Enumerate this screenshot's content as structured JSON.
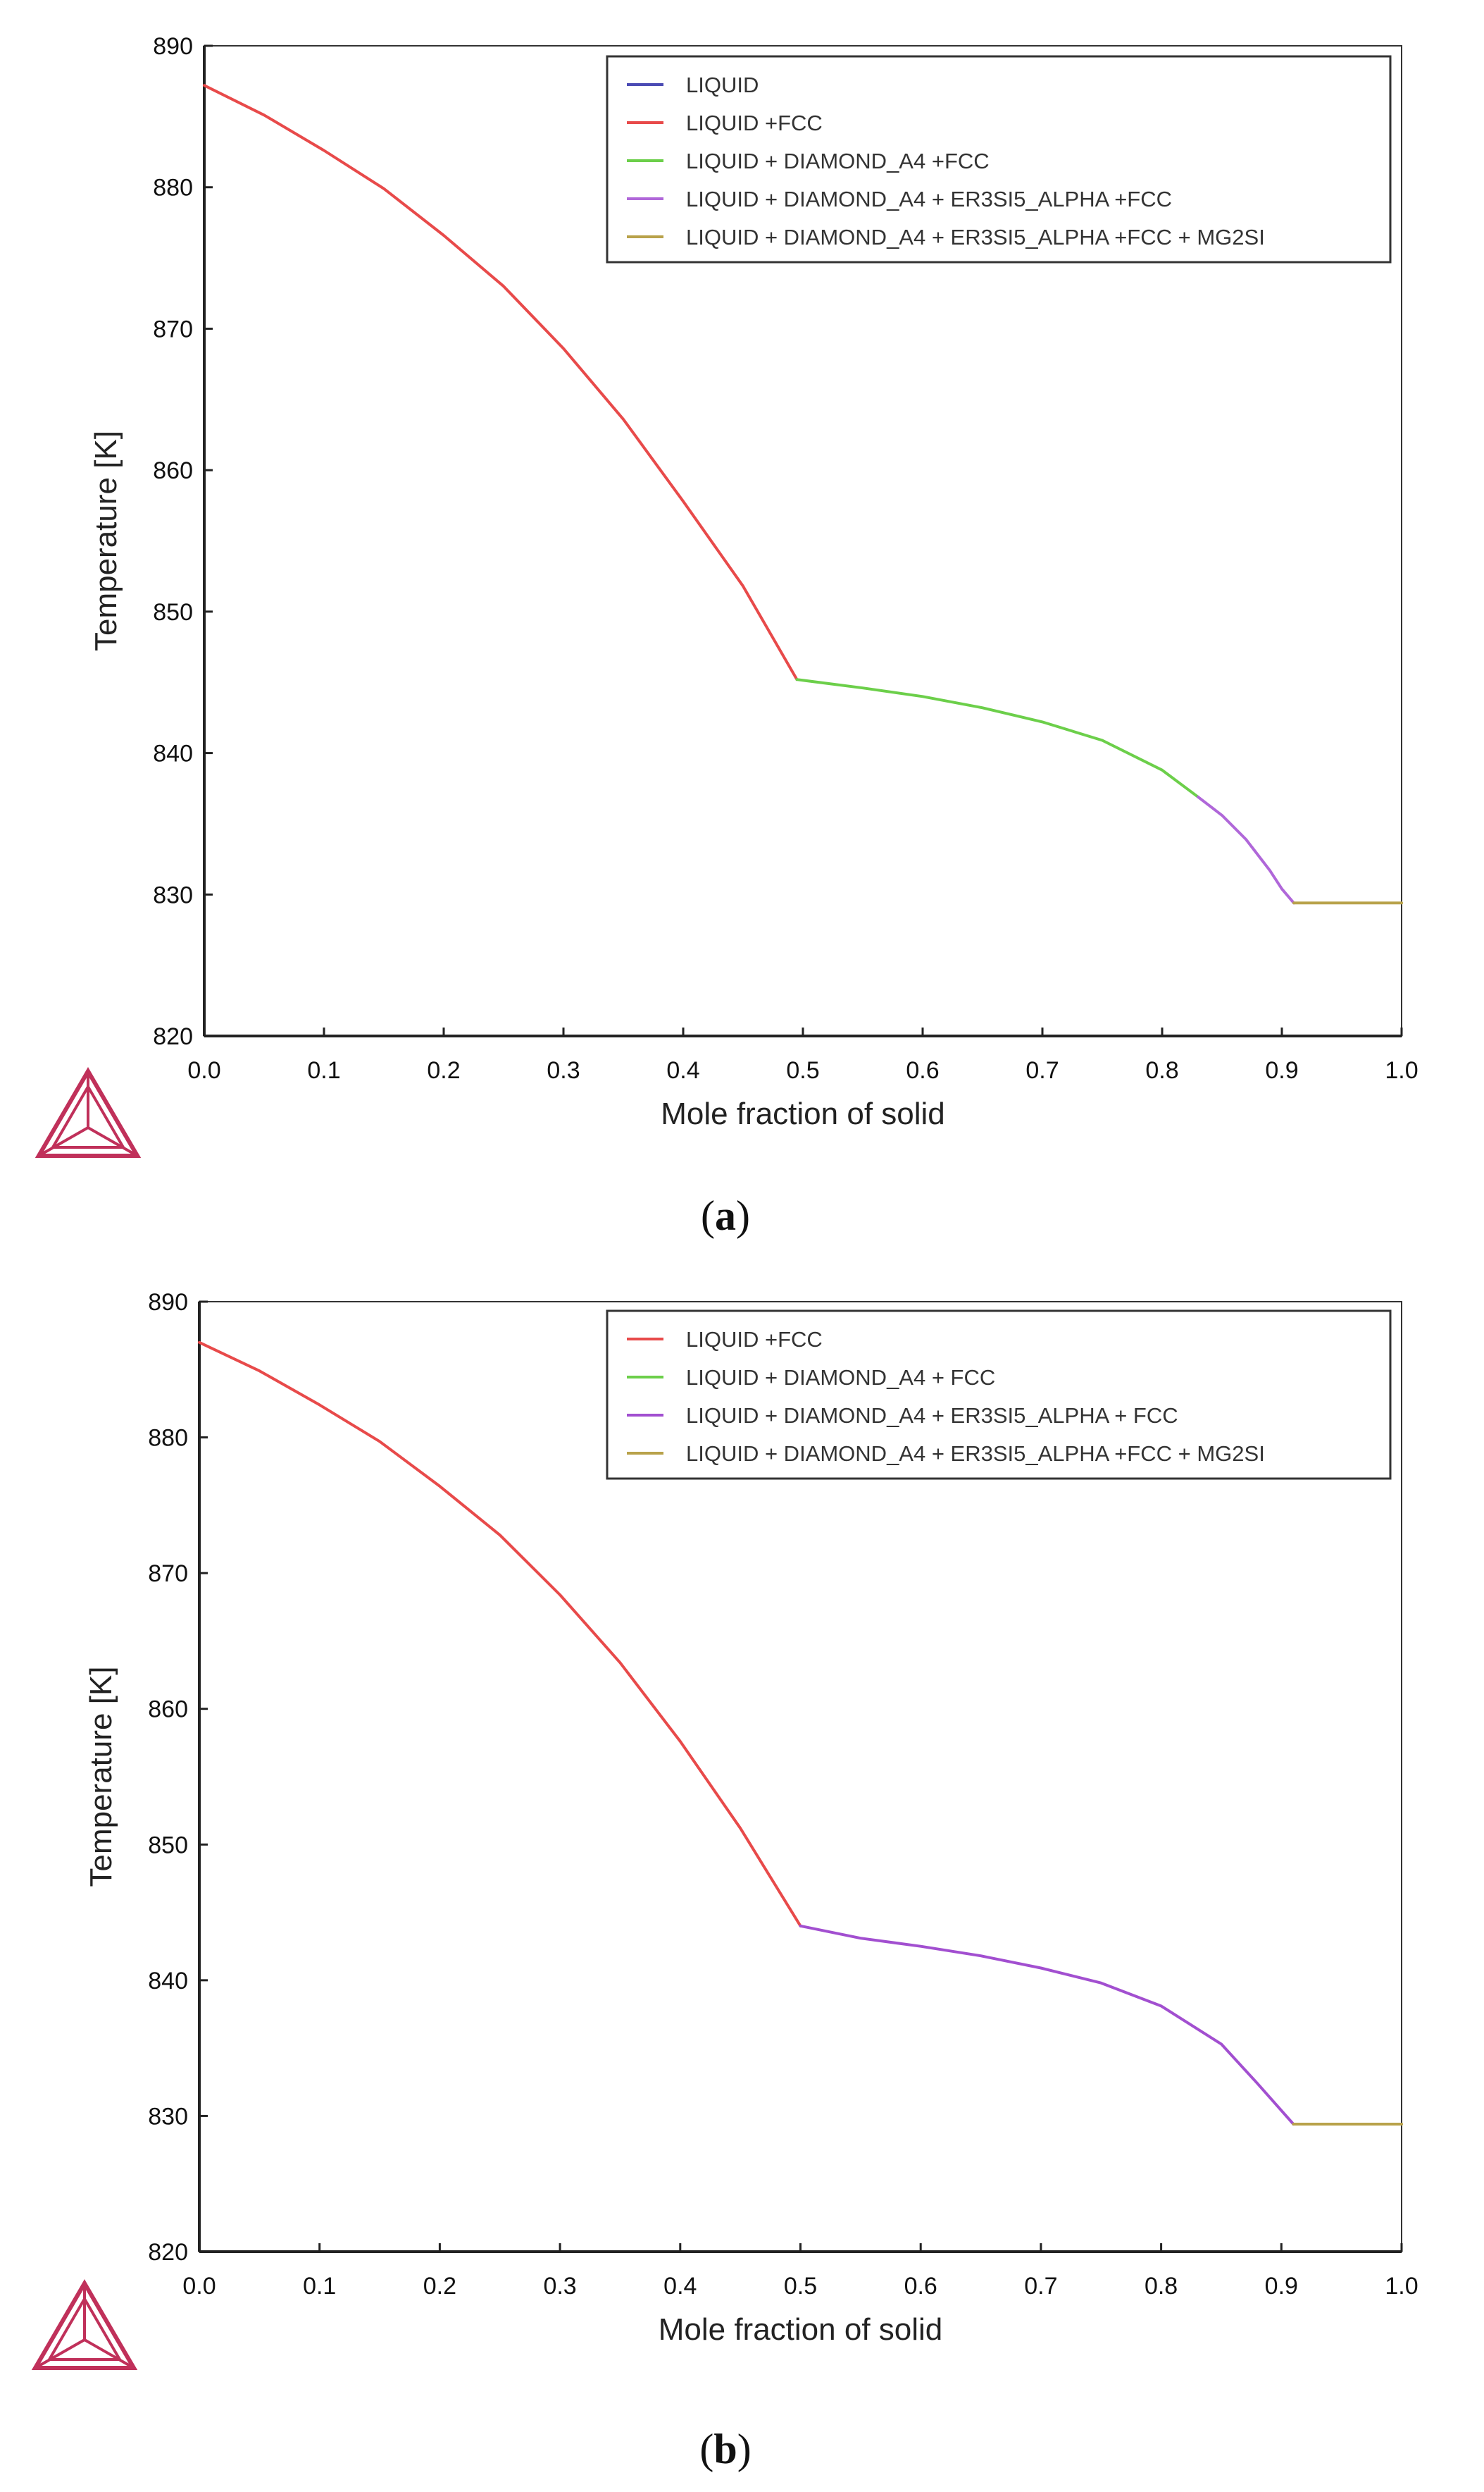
{
  "chart_data": [
    {
      "type": "line",
      "panel_label": "a",
      "title": "",
      "xlabel": "Mole fraction of solid",
      "ylabel": "Temperature [K]",
      "xlim": [
        0.0,
        1.0
      ],
      "ylim": [
        820,
        890
      ],
      "xticks": [
        "0.0",
        "0.1",
        "0.2",
        "0.3",
        "0.4",
        "0.5",
        "0.6",
        "0.7",
        "0.8",
        "0.9",
        "1.0"
      ],
      "yticks": [
        "820",
        "830",
        "840",
        "850",
        "860",
        "870",
        "880",
        "890"
      ],
      "grid": false,
      "legend_position": "top-right",
      "series": [
        {
          "name": "LIQUID",
          "color": "#4b4bb4",
          "x": [
            0.0
          ],
          "y": [
            887.2
          ]
        },
        {
          "name": "LIQUID +FCC",
          "color": "#e84a4a",
          "x": [
            0.0,
            0.05,
            0.1,
            0.15,
            0.2,
            0.25,
            0.3,
            0.35,
            0.4,
            0.45,
            0.495
          ],
          "y": [
            887.2,
            885.1,
            882.6,
            879.9,
            876.6,
            873.0,
            868.6,
            863.6,
            857.8,
            851.8,
            845.2
          ]
        },
        {
          "name": "LIQUID + DIAMOND_A4 +FCC",
          "color": "#6ccf4a",
          "x": [
            0.495,
            0.55,
            0.6,
            0.65,
            0.7,
            0.75,
            0.8,
            0.83
          ],
          "y": [
            845.2,
            844.6,
            844.0,
            843.2,
            842.2,
            840.9,
            838.8,
            836.9
          ]
        },
        {
          "name": "LIQUID + DIAMOND_A4 + ER3SI5_ALPHA +FCC",
          "color": "#b067d9",
          "x": [
            0.83,
            0.85,
            0.87,
            0.89,
            0.9,
            0.91
          ],
          "y": [
            836.9,
            835.6,
            833.9,
            831.7,
            830.4,
            829.4
          ]
        },
        {
          "name": "LIQUID + DIAMOND_A4 + ER3SI5_ALPHA +FCC + MG2SI",
          "color": "#b8a24a",
          "x": [
            0.91,
            1.0
          ],
          "y": [
            829.4,
            829.4
          ]
        }
      ]
    },
    {
      "type": "line",
      "panel_label": "b",
      "title": "",
      "xlabel": "Mole fraction of solid",
      "ylabel": "Temperature [K]",
      "xlim": [
        0.0,
        1.0
      ],
      "ylim": [
        820,
        890
      ],
      "xticks": [
        "0.0",
        "0.1",
        "0.2",
        "0.3",
        "0.4",
        "0.5",
        "0.6",
        "0.7",
        "0.8",
        "0.9",
        "1.0"
      ],
      "yticks": [
        "820",
        "830",
        "840",
        "850",
        "860",
        "870",
        "880",
        "890"
      ],
      "grid": false,
      "legend_position": "top-right",
      "series": [
        {
          "name": "LIQUID +FCC",
          "color": "#e84a4a",
          "x": [
            0.0,
            0.05,
            0.1,
            0.15,
            0.2,
            0.25,
            0.3,
            0.35,
            0.4,
            0.45,
            0.5
          ],
          "y": [
            887.0,
            884.9,
            882.4,
            879.7,
            876.4,
            872.8,
            868.4,
            863.4,
            857.6,
            851.2,
            844.0
          ]
        },
        {
          "name": "LIQUID + DIAMOND_A4 + FCC",
          "color": "#6ccf4a",
          "x": [
            0.5
          ],
          "y": [
            844.0
          ]
        },
        {
          "name": "LIQUID + DIAMOND_A4 + ER3SI5_ALPHA + FCC",
          "color": "#a24fd0",
          "x": [
            0.5,
            0.55,
            0.6,
            0.65,
            0.7,
            0.75,
            0.8,
            0.85,
            0.88,
            0.91
          ],
          "y": [
            844.0,
            843.1,
            842.5,
            841.8,
            840.9,
            839.8,
            838.1,
            835.3,
            832.4,
            829.4
          ]
        },
        {
          "name": "LIQUID + DIAMOND_A4 + ER3SI5_ALPHA +FCC + MG2SI",
          "color": "#b8a24a",
          "x": [
            0.91,
            1.0
          ],
          "y": [
            829.4,
            829.4
          ]
        }
      ]
    }
  ]
}
